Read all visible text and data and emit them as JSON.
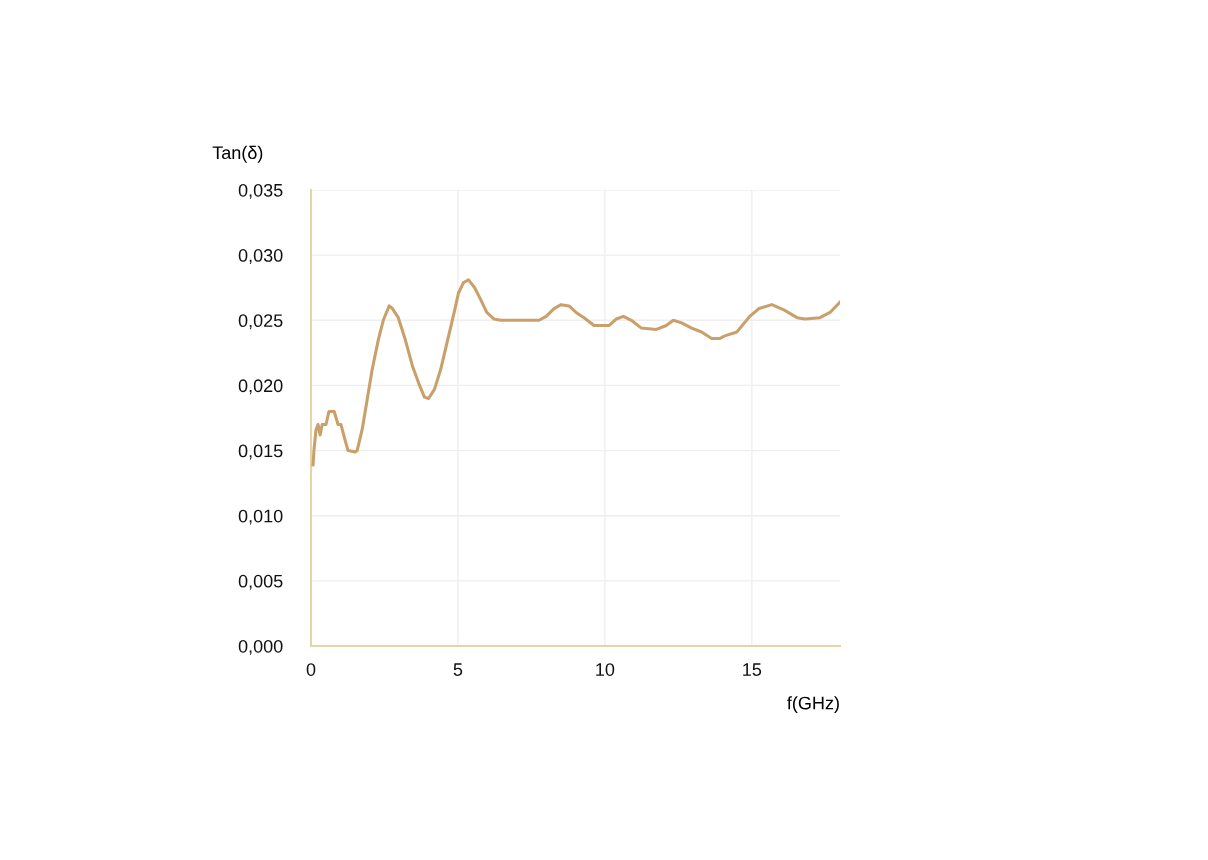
{
  "chart_data": {
    "type": "line",
    "xlabel": "f(GHz)",
    "ylabel": "Tan(δ)",
    "xlim": [
      0,
      18
    ],
    "xticks": [
      0,
      5,
      10,
      15
    ],
    "ylim": [
      0,
      0.035
    ],
    "yticks": [
      {
        "value": 0,
        "label": "0,000"
      },
      {
        "value": 0.005,
        "label": "0,005"
      },
      {
        "value": 0.01,
        "label": "0,010"
      },
      {
        "value": 0.015,
        "label": "0,015"
      },
      {
        "value": 0.02,
        "label": "0,020"
      },
      {
        "value": 0.025,
        "label": "0,025"
      },
      {
        "value": 0.03,
        "label": "0,030"
      },
      {
        "value": 0.035,
        "label": "0,035"
      }
    ],
    "grid": true,
    "marker": "none",
    "line_style": "solid",
    "series": [
      {
        "color": "#c9a06a",
        "x": [
          0.07,
          0.1,
          0.17,
          0.24,
          0.31,
          0.38,
          0.51,
          0.61,
          0.79,
          0.92,
          1.02,
          1.16,
          1.26,
          1.5,
          1.57,
          1.74,
          1.91,
          2.08,
          2.29,
          2.46,
          2.66,
          2.77,
          2.97,
          3.21,
          3.45,
          3.66,
          3.86,
          4.0,
          4.2,
          4.41,
          4.65,
          4.85,
          5.02,
          5.19,
          5.36,
          5.57,
          5.77,
          5.98,
          6.22,
          6.46,
          7.76,
          8.0,
          8.27,
          8.51,
          8.78,
          9.02,
          9.29,
          9.63,
          10.15,
          10.39,
          10.63,
          10.9,
          11.24,
          11.75,
          12.09,
          12.33,
          12.61,
          12.95,
          13.29,
          13.63,
          13.9,
          14.08,
          14.49,
          14.93,
          15.24,
          15.68,
          16.09,
          16.54,
          16.81,
          17.32,
          17.66,
          18.0
        ],
        "values": [
          0.0139,
          0.015,
          0.0166,
          0.017,
          0.0162,
          0.017,
          0.017,
          0.018,
          0.018,
          0.017,
          0.017,
          0.0158,
          0.015,
          0.0149,
          0.015,
          0.0166,
          0.0189,
          0.0212,
          0.0235,
          0.025,
          0.0261,
          0.0259,
          0.0252,
          0.0235,
          0.0215,
          0.0202,
          0.0191,
          0.019,
          0.0197,
          0.0212,
          0.0235,
          0.0254,
          0.0271,
          0.0279,
          0.0281,
          0.0275,
          0.0266,
          0.0256,
          0.0251,
          0.025,
          0.025,
          0.0253,
          0.0259,
          0.0262,
          0.0261,
          0.0256,
          0.0252,
          0.0246,
          0.0246,
          0.0251,
          0.0253,
          0.025,
          0.0244,
          0.0243,
          0.0246,
          0.025,
          0.0248,
          0.0244,
          0.0241,
          0.0236,
          0.0236,
          0.0238,
          0.0241,
          0.0253,
          0.0259,
          0.0262,
          0.0258,
          0.0252,
          0.0251,
          0.0252,
          0.0256,
          0.0264
        ]
      }
    ]
  }
}
